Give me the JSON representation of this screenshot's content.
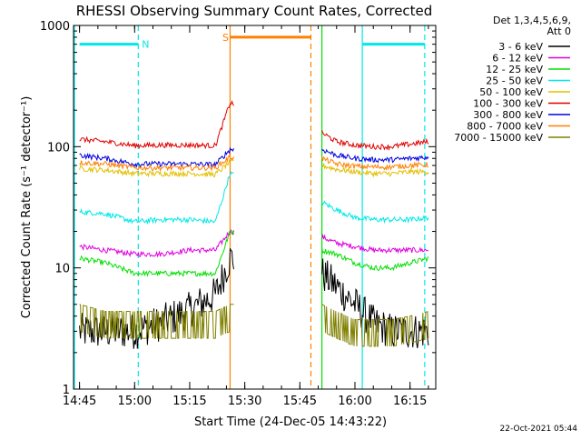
{
  "chart_data": {
    "type": "line",
    "title": "RHESSI Observing Summary Count Rates, Corrected",
    "xlabel": "Start Time (24-Dec-05 14:43:22)",
    "ylabel": "Corrected Count Rate (s⁻¹ detector⁻¹)",
    "yscale": "log",
    "ylim": [
      1,
      1000
    ],
    "xlim_minutes": [
      "14:43:22",
      "16:22"
    ],
    "x_ticks": [
      "14:45",
      "15:00",
      "15:15",
      "15:30",
      "15:45",
      "16:00",
      "16:15"
    ],
    "y_ticks": [
      "1",
      "10",
      "100",
      "1000"
    ],
    "legend_header": [
      "Det 1,3,4,5,6,9,",
      "Att 0"
    ],
    "legend_position": "right",
    "data_gap": {
      "from": "15:27",
      "to": "15:51"
    },
    "series": [
      {
        "name": "3 - 6 keV",
        "color": "#000000",
        "x": [
          "14:45",
          "14:52",
          "15:00",
          "15:07",
          "15:15",
          "15:22",
          "15:26",
          "15:51",
          "15:55",
          "16:00",
          "16:05",
          "16:10",
          "16:15",
          "16:20"
        ],
        "values": [
          3,
          3,
          3,
          3.5,
          4.5,
          6,
          12,
          9,
          7,
          5,
          3.5,
          3,
          3,
          3
        ]
      },
      {
        "name": "6 - 12 keV",
        "color": "#e000e0",
        "x": [
          "14:45",
          "14:52",
          "15:00",
          "15:07",
          "15:15",
          "15:22",
          "15:26",
          "15:51",
          "15:55",
          "16:00",
          "16:05",
          "16:10",
          "16:15",
          "16:20"
        ],
        "values": [
          15,
          14,
          13,
          13,
          14,
          14,
          20,
          18,
          16,
          15,
          14,
          14,
          14,
          14
        ]
      },
      {
        "name": "12 - 25 keV",
        "color": "#00e000",
        "x": [
          "14:45",
          "14:52",
          "15:00",
          "15:07",
          "15:15",
          "15:22",
          "15:26",
          "15:51",
          "15:55",
          "16:00",
          "16:05",
          "16:10",
          "16:15",
          "16:20"
        ],
        "values": [
          12,
          11,
          9,
          9,
          9,
          9,
          20,
          14,
          13,
          11,
          10,
          10,
          11,
          12
        ]
      },
      {
        "name": "25 - 50 keV",
        "color": "#00e8e8",
        "x": [
          "14:45",
          "14:52",
          "15:00",
          "15:07",
          "15:15",
          "15:22",
          "15:26",
          "15:51",
          "15:55",
          "16:00",
          "16:05",
          "16:10",
          "16:15",
          "16:20"
        ],
        "values": [
          29,
          28,
          24,
          25,
          25,
          24,
          60,
          35,
          30,
          26,
          25,
          25,
          25,
          26
        ]
      },
      {
        "name": "50 - 100 keV",
        "color": "#e0c000",
        "x": [
          "14:45",
          "14:52",
          "15:00",
          "15:07",
          "15:15",
          "15:22",
          "15:26",
          "15:51",
          "15:55",
          "16:00",
          "16:05",
          "16:10",
          "16:15",
          "16:20"
        ],
        "values": [
          66,
          64,
          60,
          60,
          60,
          59,
          75,
          70,
          65,
          62,
          60,
          60,
          62,
          62
        ]
      },
      {
        "name": "100 - 300 keV",
        "color": "#e00000",
        "x": [
          "14:45",
          "14:52",
          "15:00",
          "15:07",
          "15:15",
          "15:22",
          "15:26",
          "15:51",
          "15:55",
          "16:00",
          "16:05",
          "16:10",
          "16:15",
          "16:20"
        ],
        "values": [
          115,
          110,
          102,
          103,
          103,
          102,
          230,
          130,
          110,
          103,
          100,
          100,
          105,
          110
        ]
      },
      {
        "name": "300 - 800 keV",
        "color": "#0000e0",
        "x": [
          "14:45",
          "14:52",
          "15:00",
          "15:07",
          "15:15",
          "15:22",
          "15:26",
          "15:51",
          "15:55",
          "16:00",
          "16:05",
          "16:10",
          "16:15",
          "16:20"
        ],
        "values": [
          85,
          80,
          72,
          72,
          72,
          71,
          95,
          95,
          85,
          80,
          78,
          78,
          80,
          82
        ]
      },
      {
        "name": "800 - 7000 keV",
        "color": "#ff8000",
        "x": [
          "14:45",
          "14:52",
          "15:00",
          "15:07",
          "15:15",
          "15:22",
          "15:26",
          "15:51",
          "15:55",
          "16:00",
          "16:05",
          "16:10",
          "16:15",
          "16:20"
        ],
        "values": [
          74,
          72,
          67,
          67,
          67,
          67,
          82,
          80,
          72,
          69,
          68,
          68,
          70,
          71
        ]
      },
      {
        "name": "7000 - 15000 keV",
        "color": "#808000",
        "x": [
          "14:45",
          "14:52",
          "15:00",
          "15:07",
          "15:15",
          "15:22",
          "15:26",
          "15:51",
          "15:55",
          "16:00",
          "16:05",
          "16:10",
          "16:15",
          "16:20"
        ],
        "values": [
          4,
          3.5,
          3.5,
          3.5,
          3.5,
          3.5,
          4,
          4,
          3.5,
          3,
          3,
          3,
          3.2,
          3.5
        ]
      }
    ],
    "annotations": [
      {
        "label": "N",
        "color": "#00e8e8",
        "from": "14:45",
        "to": "15:01",
        "level": 700
      },
      {
        "label": "S",
        "color": "#ff8000",
        "from": "15:26",
        "to": "15:48",
        "level": 800
      },
      {
        "label": "",
        "color": "#00e8e8",
        "from": "16:02",
        "to": "16:19",
        "level": 700
      }
    ],
    "vertical_markers": [
      {
        "time": "15:01",
        "color": "#00e8e8",
        "style": "dashed"
      },
      {
        "time": "15:26",
        "color": "#ff8000",
        "style": "solid"
      },
      {
        "time": "15:48",
        "color": "#ff8000",
        "style": "dashed"
      },
      {
        "time": "15:51",
        "color": "#00e000",
        "style": "solid"
      },
      {
        "time": "16:02",
        "color": "#00e8e8",
        "style": "solid"
      },
      {
        "time": "16:19",
        "color": "#00e8e8",
        "style": "dashed"
      }
    ]
  },
  "footer": {
    "timestamp": "22-Oct-2021 05:44"
  }
}
